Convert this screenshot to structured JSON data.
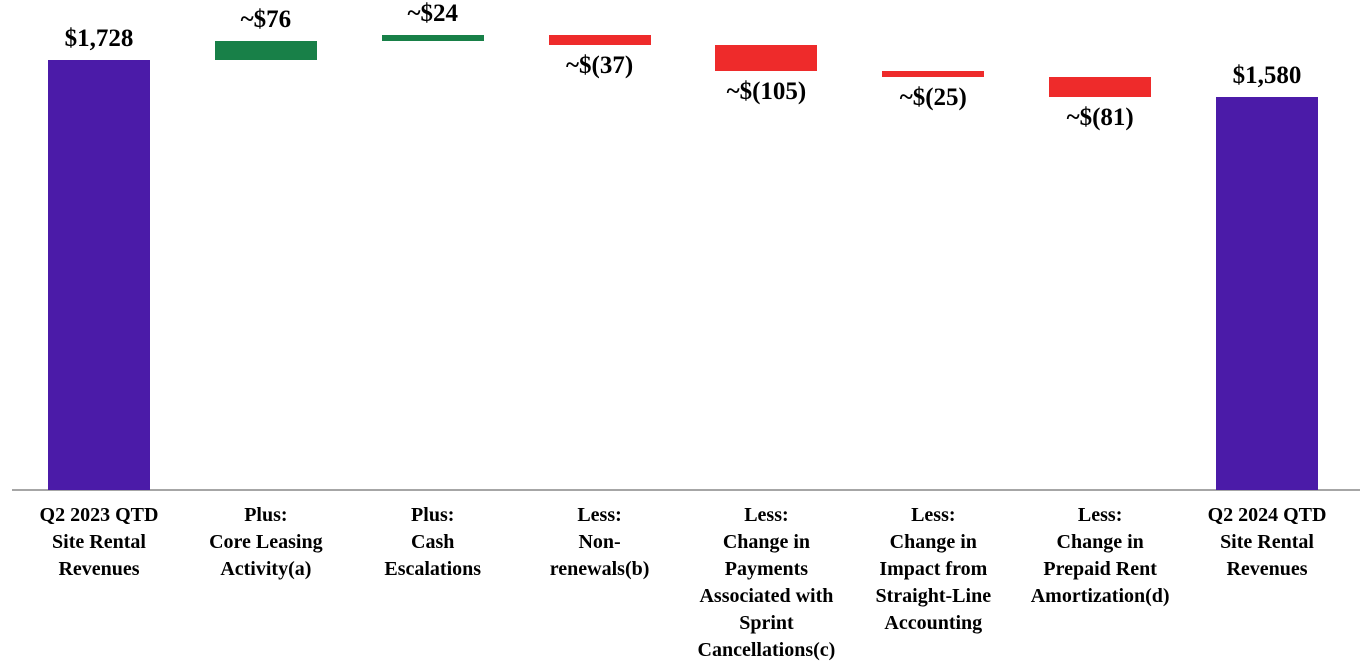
{
  "chart_data": {
    "type": "bar",
    "subtype": "waterfall",
    "title": "",
    "legend": "none",
    "grid": false,
    "ylim": [
      0,
      1970
    ],
    "colors": {
      "total": "#4B1BA8",
      "increase": "#188048",
      "decrease": "#EE2B2B",
      "axis_line": "#A6A6A6",
      "label_text": "#000000"
    },
    "items": [
      {
        "kind": "total",
        "value": 1728,
        "data_label": "$1,728",
        "category_lines": [
          "Q2 2023 QTD",
          "Site Rental",
          "Revenues"
        ]
      },
      {
        "kind": "increase",
        "value": 76,
        "data_label": "~$76",
        "category_lines": [
          "Plus:",
          "Core Leasing",
          "Activity(a)"
        ]
      },
      {
        "kind": "increase",
        "value": 24,
        "data_label": "~$24",
        "category_lines": [
          "Plus:",
          "Cash",
          "Escalations"
        ]
      },
      {
        "kind": "decrease",
        "value": -37,
        "data_label": "~$(37)",
        "category_lines": [
          "Less:",
          "Non-",
          "renewals(b)"
        ]
      },
      {
        "kind": "decrease",
        "value": -105,
        "data_label": "~$(105)",
        "category_lines": [
          "Less:",
          "Change in",
          "Payments",
          "Associated with",
          "Sprint",
          "Cancellations(c)"
        ]
      },
      {
        "kind": "decrease",
        "value": -25,
        "data_label": "~$(25)",
        "category_lines": [
          "Less:",
          "Change in",
          "Impact from",
          "Straight-Line",
          "Accounting"
        ]
      },
      {
        "kind": "decrease",
        "value": -81,
        "data_label": "~$(81)",
        "category_lines": [
          "Less:",
          "Change in",
          "Prepaid Rent",
          "Amortization(d)"
        ]
      },
      {
        "kind": "total",
        "value": 1580,
        "data_label": "$1,580",
        "category_lines": [
          "Q2 2024 QTD",
          "Site Rental",
          "Revenues"
        ]
      }
    ]
  }
}
